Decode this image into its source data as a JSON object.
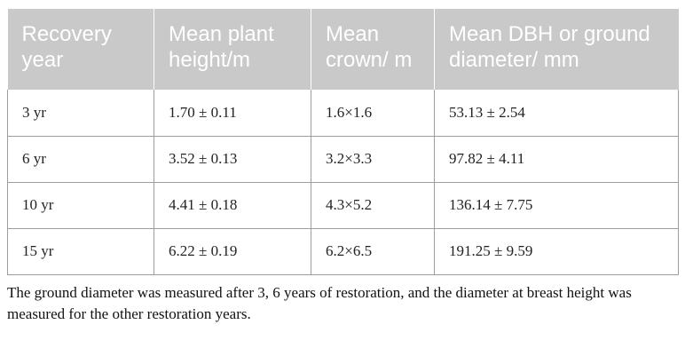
{
  "table": {
    "headers": [
      "Recovery year",
      "Mean plant height/m",
      "Mean crown/ m",
      "Mean DBH or ground diameter/ mm"
    ],
    "rows": [
      [
        "3 yr",
        "1.70 ± 0.11",
        "1.6×1.6",
        "53.13 ± 2.54"
      ],
      [
        "6 yr",
        "3.52 ± 0.13",
        "3.2×3.3",
        "97.82 ± 4.11"
      ],
      [
        "10 yr",
        "4.41 ± 0.18",
        "4.3×5.2",
        "136.14 ± 7.75"
      ],
      [
        "15 yr",
        "6.22 ± 0.19",
        "6.2×6.5",
        "191.25 ± 9.59"
      ]
    ]
  },
  "footnote": "The ground diameter was measured after 3, 6 years of restoration, and the diameter at breast height was measured for the other restoration years."
}
